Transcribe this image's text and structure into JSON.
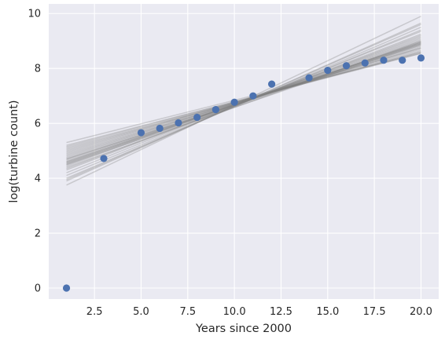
{
  "chart_data": {
    "type": "scatter",
    "title": "",
    "xlabel": "Years since 2000",
    "ylabel": "log(turbine count)",
    "xlim": [
      0.05,
      20.95
    ],
    "ylim": [
      -0.4,
      10.35
    ],
    "grid": true,
    "legend": "none",
    "x_ticks": [
      2.5,
      5.0,
      7.5,
      10.0,
      12.5,
      15.0,
      17.5,
      20.0
    ],
    "x_tick_labels": [
      "2.5",
      "5.0",
      "7.5",
      "10.0",
      "12.5",
      "15.0",
      "17.5",
      "20.0"
    ],
    "y_ticks": [
      0,
      2,
      4,
      6,
      8,
      10
    ],
    "y_tick_labels": [
      "0",
      "2",
      "4",
      "6",
      "8",
      "10"
    ],
    "points": {
      "color": "#4c72b0",
      "x": [
        1,
        3,
        5,
        6,
        7,
        8,
        9,
        10,
        11,
        12,
        14,
        15,
        16,
        17,
        18,
        19,
        20
      ],
      "y": [
        0.0,
        4.72,
        5.66,
        5.82,
        6.02,
        6.22,
        6.5,
        6.77,
        7.0,
        7.43,
        7.66,
        7.93,
        8.1,
        8.2,
        8.3,
        8.3,
        8.38
      ]
    },
    "fit_lines": {
      "color": "#808080",
      "x_start": 1,
      "x_end": 20,
      "lines": [
        [
          4.6,
          8.95
        ],
        [
          4.4,
          9.0
        ],
        [
          4.9,
          8.75
        ],
        [
          5.2,
          8.55
        ],
        [
          5.3,
          8.55
        ],
        [
          3.75,
          9.9
        ],
        [
          3.9,
          9.65
        ],
        [
          4.1,
          9.4
        ],
        [
          4.3,
          9.25
        ],
        [
          4.5,
          9.1
        ],
        [
          4.7,
          8.9
        ],
        [
          4.8,
          8.85
        ],
        [
          5.0,
          8.7
        ],
        [
          5.1,
          8.6
        ],
        [
          4.55,
          9.05
        ],
        [
          4.65,
          8.95
        ],
        [
          4.75,
          8.9
        ],
        [
          4.85,
          8.8
        ],
        [
          4.95,
          8.75
        ],
        [
          4.45,
          9.15
        ],
        [
          4.5,
          8.9
        ],
        [
          4.6,
          9.0
        ],
        [
          4.35,
          9.2
        ],
        [
          5.05,
          8.65
        ],
        [
          4.2,
          9.35
        ],
        [
          4.0,
          9.5
        ],
        [
          4.55,
          8.95
        ],
        [
          4.7,
          8.85
        ],
        [
          5.15,
          8.6
        ],
        [
          3.95,
          9.6
        ]
      ]
    }
  }
}
